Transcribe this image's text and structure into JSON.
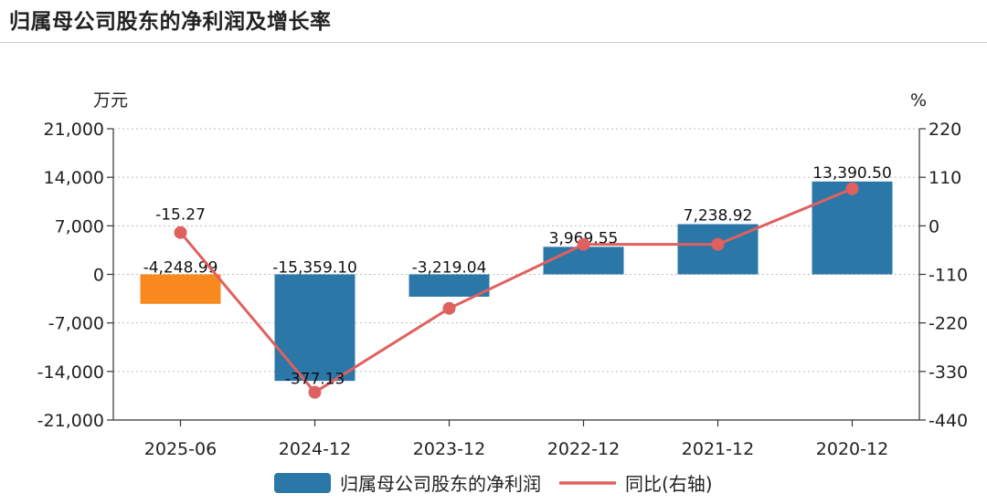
{
  "title": "归属母公司股东的净利润及增长率",
  "chart_data": {
    "type": "bar",
    "categories": [
      "2025-06",
      "2024-12",
      "2023-12",
      "2022-12",
      "2021-12",
      "2020-12"
    ],
    "series": [
      {
        "name": "归属母公司股东的净利润",
        "type": "bar",
        "axis": "left",
        "values": [
          -4248.99,
          -15359.1,
          -3219.04,
          3969.55,
          7238.92,
          13390.5
        ],
        "labels": [
          "-4,248.99",
          "-15,359.10",
          "-3,219.04",
          "3,969.55",
          "7,238.92",
          "13,390.50"
        ],
        "colors": [
          "#f7891f",
          "#2b77a8",
          "#2b77a8",
          "#2b77a8",
          "#2b77a8",
          "#2b77a8"
        ]
      },
      {
        "name": "同比(右轴)",
        "type": "line",
        "axis": "right",
        "values": [
          -15.27,
          -377.13,
          -187,
          -42,
          -42,
          84
        ],
        "labels": [
          "-15.27",
          "-377.13",
          "",
          "",
          "",
          ""
        ],
        "color": "#e06060"
      }
    ],
    "yleft": {
      "unit": "万元",
      "ylim": [
        -21000,
        21000
      ],
      "ticks": [
        21000,
        14000,
        7000,
        0,
        -7000,
        -14000,
        -21000
      ],
      "tick_labels": [
        "21,000",
        "14,000",
        "7,000",
        "0",
        "-7,000",
        "-14,000",
        "-21,000"
      ]
    },
    "yright": {
      "unit": "%",
      "ylim": [
        -440,
        220
      ],
      "ticks": [
        220,
        110,
        0,
        -110,
        -220,
        -330,
        -440
      ],
      "tick_labels": [
        "220",
        "110",
        "0",
        "-110",
        "-220",
        "-330",
        "-440"
      ]
    },
    "grid": "horizontal-dotted",
    "legend_position": "bottom-center"
  }
}
